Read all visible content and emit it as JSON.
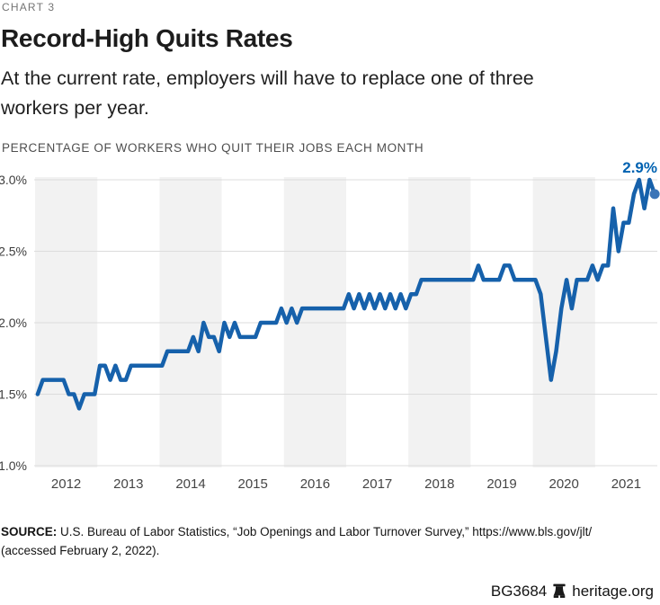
{
  "page": {
    "kicker": "CHART 3",
    "title": "Record-High Quits Rates",
    "subtitle_line1": "At the current rate, employers will have to replace one of three",
    "subtitle_line2": "workers per year.",
    "eyebrow": "PERCENTAGE OF WORKERS WHO QUIT THEIR JOBS EACH MONTH"
  },
  "footer": {
    "source_label": "SOURCE:",
    "source_line1": "U.S. Bureau of Labor Statistics, “Job Openings and Labor Turnover Survey,” https://www.bls.gov/jlt/",
    "source_line2": "(accessed February 2, 2022).",
    "report_id": "BG3684",
    "site": "heritage.org",
    "logo_icon": "liberty-bell-icon"
  },
  "chart_data": {
    "type": "line",
    "title": "Record-High Quits Rates",
    "ylabel": "Percentage of workers who quit their jobs each month",
    "frequency": "monthly",
    "points_per_year": 12,
    "x_tick_labels": [
      "2012",
      "2013",
      "2014",
      "2015",
      "2016",
      "2017",
      "2018",
      "2019",
      "2020",
      "2021"
    ],
    "ylim": [
      1.0,
      3.0
    ],
    "grid": "horizontal",
    "plot_bands": "alternating-year-shading-starting-2012",
    "legend": "none",
    "y_ticks": [
      {
        "label": "3.0%",
        "value": 3.0
      },
      {
        "label": "2.5%",
        "value": 2.5
      },
      {
        "label": "2.0%",
        "value": 2.0
      },
      {
        "label": "1.5%",
        "value": 1.5
      },
      {
        "label": "1.0%",
        "value": 1.0
      }
    ],
    "series": [
      {
        "name": "Quits rate (% of workers quitting each month)",
        "values": [
          1.5,
          1.6,
          1.6,
          1.6,
          1.6,
          1.6,
          1.5,
          1.5,
          1.4,
          1.5,
          1.5,
          1.5,
          1.7,
          1.7,
          1.6,
          1.7,
          1.6,
          1.6,
          1.7,
          1.7,
          1.7,
          1.7,
          1.7,
          1.7,
          1.7,
          1.8,
          1.8,
          1.8,
          1.8,
          1.8,
          1.9,
          1.8,
          2.0,
          1.9,
          1.9,
          1.8,
          2.0,
          1.9,
          2.0,
          1.9,
          1.9,
          1.9,
          1.9,
          2.0,
          2.0,
          2.0,
          2.0,
          2.1,
          2.0,
          2.1,
          2.0,
          2.1,
          2.1,
          2.1,
          2.1,
          2.1,
          2.1,
          2.1,
          2.1,
          2.1,
          2.2,
          2.1,
          2.2,
          2.1,
          2.2,
          2.1,
          2.2,
          2.1,
          2.2,
          2.1,
          2.2,
          2.1,
          2.2,
          2.2,
          2.3,
          2.3,
          2.3,
          2.3,
          2.3,
          2.3,
          2.3,
          2.3,
          2.3,
          2.3,
          2.3,
          2.4,
          2.3,
          2.3,
          2.3,
          2.3,
          2.4,
          2.4,
          2.3,
          2.3,
          2.3,
          2.3,
          2.3,
          2.2,
          1.9,
          1.6,
          1.8,
          2.1,
          2.3,
          2.1,
          2.3,
          2.3,
          2.3,
          2.4,
          2.3,
          2.4,
          2.4,
          2.8,
          2.5,
          2.7,
          2.7,
          2.9,
          3.0,
          2.8,
          3.0,
          2.9
        ]
      }
    ],
    "end_annotation": {
      "label": "2.9%",
      "value": 2.9
    },
    "colors": {
      "line": "#1661ab",
      "dot": "#3b74b7",
      "annotation": "#0062b1",
      "band": "#f2f2f2",
      "gridline": "#dcdcdc",
      "tick_text": "#3d3d3d",
      "year_text": "#454545"
    }
  }
}
